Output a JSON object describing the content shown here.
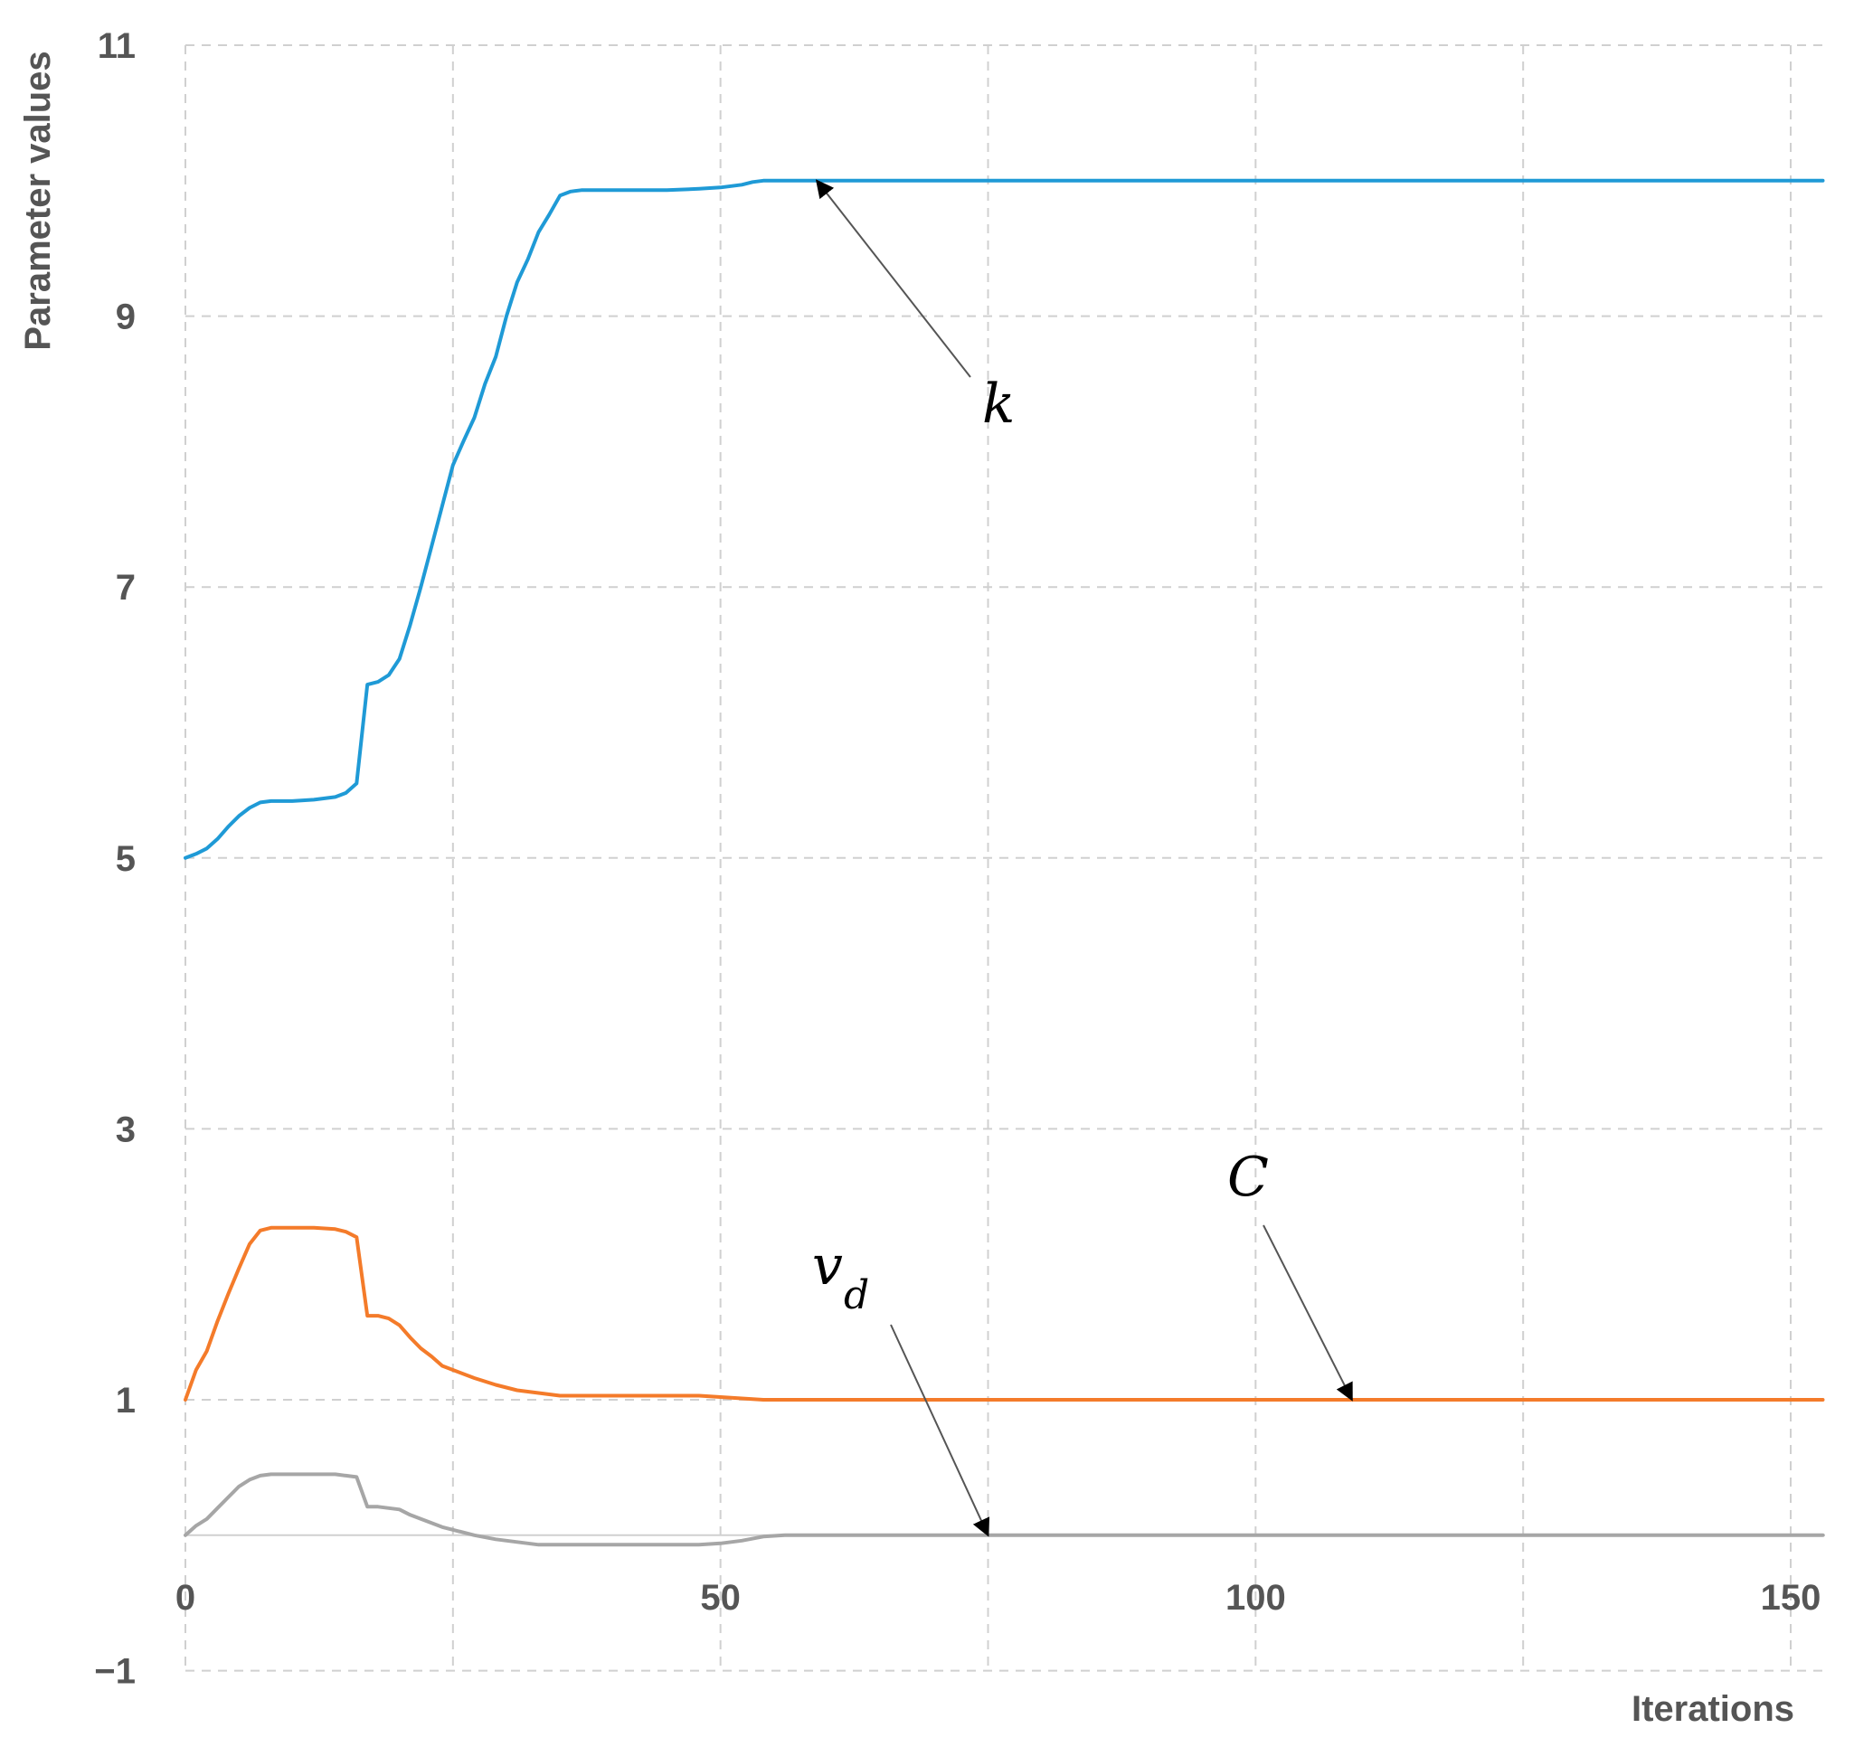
{
  "chart_data": {
    "type": "line",
    "xlabel": "Iterations",
    "ylabel": "Parameter values",
    "xlim": [
      0,
      153
    ],
    "ylim": [
      -1,
      11
    ],
    "xticks": [
      0,
      50,
      100,
      150
    ],
    "xtick_labels": [
      "0",
      "50",
      "100",
      "150"
    ],
    "yticks": [
      -1,
      1,
      3,
      5,
      7,
      9,
      11
    ],
    "ytick_labels": [
      "−1",
      "1",
      "3",
      "5",
      "7",
      "9",
      "11"
    ],
    "x_grid": [
      0,
      25,
      50,
      75,
      100,
      125,
      150
    ],
    "grid": true,
    "series": [
      {
        "name": "k",
        "color": "#1f9ad6",
        "points": [
          [
            0,
            5.0
          ],
          [
            1,
            5.03
          ],
          [
            2,
            5.07
          ],
          [
            3,
            5.14
          ],
          [
            4,
            5.23
          ],
          [
            5,
            5.31
          ],
          [
            6,
            5.37
          ],
          [
            7,
            5.41
          ],
          [
            8,
            5.42
          ],
          [
            10,
            5.42
          ],
          [
            12,
            5.43
          ],
          [
            14,
            5.45
          ],
          [
            15,
            5.48
          ],
          [
            16,
            5.55
          ],
          [
            17,
            6.28
          ],
          [
            18,
            6.3
          ],
          [
            19,
            6.35
          ],
          [
            20,
            6.47
          ],
          [
            21,
            6.72
          ],
          [
            22,
            7.0
          ],
          [
            23,
            7.3
          ],
          [
            24,
            7.6
          ],
          [
            25,
            7.9
          ],
          [
            26,
            8.08
          ],
          [
            27,
            8.25
          ],
          [
            28,
            8.5
          ],
          [
            29,
            8.7
          ],
          [
            30,
            9.0
          ],
          [
            31,
            9.25
          ],
          [
            32,
            9.42
          ],
          [
            33,
            9.62
          ],
          [
            34,
            9.75
          ],
          [
            35,
            9.89
          ],
          [
            36,
            9.92
          ],
          [
            37,
            9.93
          ],
          [
            40,
            9.93
          ],
          [
            45,
            9.93
          ],
          [
            48,
            9.94
          ],
          [
            50,
            9.95
          ],
          [
            52,
            9.97
          ],
          [
            53,
            9.99
          ],
          [
            54,
            10.0
          ],
          [
            60,
            10.0
          ],
          [
            100,
            10.0
          ],
          [
            153,
            10.0
          ]
        ]
      },
      {
        "name": "C",
        "color": "#f47b2a",
        "points": [
          [
            0,
            1.0
          ],
          [
            1,
            1.22
          ],
          [
            2,
            1.36
          ],
          [
            3,
            1.58
          ],
          [
            4,
            1.78
          ],
          [
            5,
            1.97
          ],
          [
            6,
            2.15
          ],
          [
            7,
            2.25
          ],
          [
            8,
            2.27
          ],
          [
            10,
            2.27
          ],
          [
            12,
            2.27
          ],
          [
            14,
            2.26
          ],
          [
            15,
            2.24
          ],
          [
            16,
            2.2
          ],
          [
            17,
            1.62
          ],
          [
            18,
            1.62
          ],
          [
            19,
            1.6
          ],
          [
            20,
            1.55
          ],
          [
            21,
            1.46
          ],
          [
            22,
            1.38
          ],
          [
            23,
            1.32
          ],
          [
            24,
            1.25
          ],
          [
            25,
            1.22
          ],
          [
            27,
            1.16
          ],
          [
            29,
            1.11
          ],
          [
            31,
            1.07
          ],
          [
            33,
            1.05
          ],
          [
            35,
            1.03
          ],
          [
            40,
            1.03
          ],
          [
            45,
            1.03
          ],
          [
            48,
            1.03
          ],
          [
            50,
            1.02
          ],
          [
            52,
            1.01
          ],
          [
            54,
            1.0
          ],
          [
            60,
            1.0
          ],
          [
            100,
            1.0
          ],
          [
            153,
            1.0
          ]
        ]
      },
      {
        "name": "v_d",
        "color": "#a6a6a6",
        "points": [
          [
            0,
            0.0
          ],
          [
            1,
            0.07
          ],
          [
            2,
            0.12
          ],
          [
            3,
            0.2
          ],
          [
            4,
            0.28
          ],
          [
            5,
            0.36
          ],
          [
            6,
            0.41
          ],
          [
            7,
            0.44
          ],
          [
            8,
            0.45
          ],
          [
            10,
            0.45
          ],
          [
            12,
            0.45
          ],
          [
            14,
            0.45
          ],
          [
            15,
            0.44
          ],
          [
            16,
            0.43
          ],
          [
            17,
            0.21
          ],
          [
            18,
            0.21
          ],
          [
            19,
            0.2
          ],
          [
            20,
            0.19
          ],
          [
            21,
            0.15
          ],
          [
            22,
            0.12
          ],
          [
            23,
            0.09
          ],
          [
            24,
            0.06
          ],
          [
            25,
            0.04
          ],
          [
            27,
            0.0
          ],
          [
            29,
            -0.03
          ],
          [
            31,
            -0.05
          ],
          [
            33,
            -0.07
          ],
          [
            35,
            -0.07
          ],
          [
            40,
            -0.07
          ],
          [
            45,
            -0.07
          ],
          [
            48,
            -0.07
          ],
          [
            50,
            -0.06
          ],
          [
            52,
            -0.04
          ],
          [
            54,
            -0.01
          ],
          [
            56,
            0.0
          ],
          [
            60,
            0.0
          ],
          [
            100,
            0.0
          ],
          [
            153,
            0.0
          ]
        ]
      }
    ],
    "annotations": [
      {
        "label": "k",
        "target": [
          59,
          10.0
        ]
      },
      {
        "label": "C",
        "target": [
          109,
          1.0
        ]
      },
      {
        "label": "v",
        "subscript": "d",
        "target": [
          75,
          0.0
        ]
      }
    ]
  }
}
